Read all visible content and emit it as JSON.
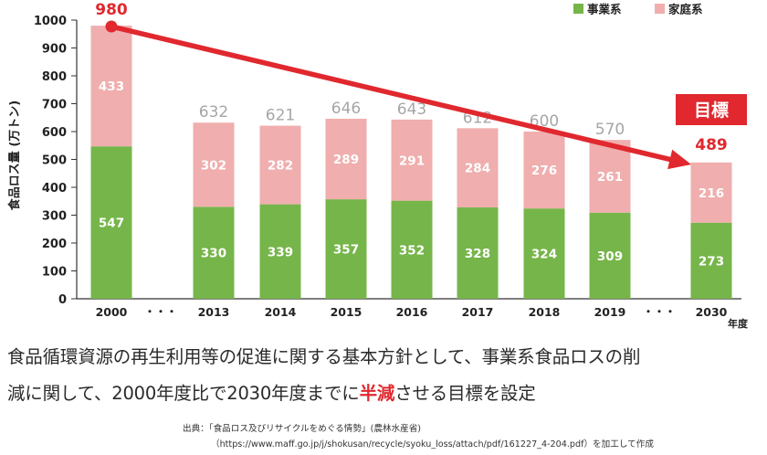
{
  "chart_data": {
    "type": "bar",
    "stacked": true,
    "categories": [
      "2000",
      "2013",
      "2014",
      "2015",
      "2016",
      "2017",
      "2018",
      "2019",
      "2030"
    ],
    "ellipsis_label": "・・・",
    "series": [
      {
        "name": "事業系",
        "color": "#76b54a",
        "values": [
          547,
          330,
          339,
          357,
          352,
          328,
          324,
          309,
          273
        ]
      },
      {
        "name": "家庭系",
        "color": "#f0aeae",
        "values": [
          433,
          302,
          282,
          289,
          291,
          284,
          276,
          261,
          216
        ]
      }
    ],
    "totals": [
      "980",
      "632",
      "621",
      "646",
      "643",
      "612",
      "600",
      "570",
      "489"
    ],
    "highlight_total_color": "#e0282e",
    "normal_total_color": "#a6a6a6",
    "ylabel": "食品ロス量 (万トン)",
    "xlabel": "年度",
    "ylim": [
      0,
      1000
    ],
    "yticks": [
      "0",
      "100",
      "200",
      "300",
      "400",
      "500",
      "600",
      "700",
      "800",
      "900",
      "1000"
    ],
    "legend_position": "top-right",
    "trend_arrow": {
      "from": "2000",
      "to": "2030",
      "color": "#e0282e"
    },
    "target_badge": {
      "label": "目標",
      "color": "#e0282e"
    }
  },
  "caption": {
    "line1": "食品循環資源の再生利用等の促進に関する基本方針として、事業系食品ロスの削",
    "line2_pre": "減に関して、2000年度比で2030年度までに",
    "line2_highlight": "半減",
    "line2_post": "させる目標を設定"
  },
  "source": {
    "line1": "出典：「食品ロス及びリサイクルをめぐる情勢」(農林水産省)",
    "line2": "（https://www.maff.go.jp/j/shokusan/recycle/syoku_loss/attach/pdf/161227_4-204.pdf）を加工して作成"
  }
}
